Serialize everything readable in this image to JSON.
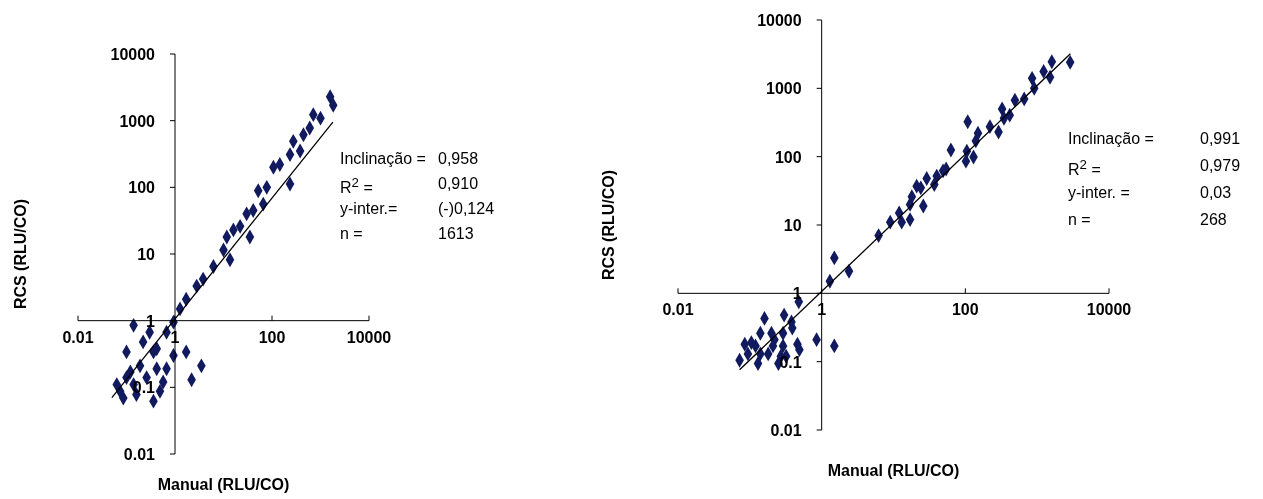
{
  "chart_data": [
    {
      "type": "scatter",
      "xlabel": "Manual (RLU/CO)",
      "ylabel": "RCS (RLU/CO)",
      "log": "xy",
      "xlim": [
        0.01,
        10000
      ],
      "ylim": [
        0.01,
        10000
      ],
      "xticks": [
        0.01,
        1,
        100,
        10000
      ],
      "yticks": [
        0.01,
        0.1,
        1,
        10,
        100,
        1000,
        10000
      ],
      "grid": false,
      "legend": false,
      "annotations": [
        "Inclinação =",
        "0,958",
        "R$^{2}$ =",
        "0,910",
        "y-inter.=",
        "(-)0,124",
        "n =",
        "1613"
      ],
      "series": [
        {
          "type": "scatter",
          "marker": "diamond",
          "color": "#111a5e",
          "x": [
            1580,
            1830,
            1000,
            710,
            600,
            445,
            380,
            275,
            235,
            235,
            145,
            107,
            78,
            52,
            66,
            41,
            30,
            35,
            22,
            16,
            11.7,
            13.6,
            10,
            6.2,
            3.8,
            2.8,
            1.7,
            1.27,
            0.93,
            0.67,
            0.14,
            0.3,
            0.42,
            0.93,
            1.7,
            3.5,
            2.2,
            0.67,
            0.57,
            0.36,
            0.14,
            0.074,
            0.086,
            0.1,
            0.19,
            0.26,
            0.12,
            0.063,
            0.36,
            0.22,
            0.49,
            0.16,
            0.1,
            0.42
          ],
          "values": [
            2280,
            1700,
            1090,
            1230,
            775,
            615,
            350,
            490,
            310,
            112,
            220,
            200,
            100,
            89,
            56,
            45,
            40,
            18,
            26,
            23,
            18,
            8.2,
            11.5,
            6.5,
            4.2,
            3.3,
            2.1,
            1.5,
            0.95,
            0.67,
            0.85,
            0.67,
            0.38,
            0.3,
            0.34,
            0.21,
            0.13,
            0.19,
            0.12,
            0.062,
            0.11,
            0.087,
            0.069,
            0.34,
            0.21,
            0.14,
            0.17,
            0.11,
            0.34,
            0.48,
            0.087,
            0.078,
            0.14,
            0.19
          ]
        },
        {
          "type": "line",
          "marker": "none",
          "color": "#000000",
          "x": [
            0.05,
            1800
          ],
          "values": [
            0.07,
            950
          ]
        }
      ]
    },
    {
      "type": "scatter",
      "xlabel": "Manual (RLU/CO)",
      "ylabel": "RCS (RLU/CO)",
      "log": "xy",
      "xlim": [
        0.01,
        10000
      ],
      "ylim": [
        0.01,
        10000
      ],
      "xticks": [
        0.01,
        1,
        100,
        10000
      ],
      "yticks": [
        0.01,
        0.1,
        1,
        10,
        100,
        1000,
        10000
      ],
      "grid": false,
      "legend": false,
      "annotations": [
        "Inclinação =",
        "0,991",
        "R$^{2}$ =",
        "0,979",
        "y-inter. =",
        "0,03",
        "n =",
        "268"
      ],
      "series": [
        {
          "type": "scatter",
          "marker": "diamond",
          "color": "#111a5e",
          "x": [
            2880,
            1600,
            1230,
            850,
            1510,
            910,
            660,
            490,
            415,
            325,
            345,
            290,
            220,
            150,
            140,
            108,
            130,
            102,
            105,
            63,
            54,
            49,
            40,
            37,
            29,
            24,
            26,
            21,
            18,
            17,
            17,
            13,
            12,
            9,
            6.2,
            2.4,
            1.5,
            1.3,
            1.5,
            0.85,
            0.48,
            0.46,
            0.38,
            0.3,
            0.39,
            0.49,
            0.29,
            0.16,
            0.14,
            0.22,
            0.12,
            0.094,
            0.072,
            0.105,
            0.18,
            0.13,
            0.25,
            0.29,
            0.085,
            0.2,
            0.32,
            0.14,
            0.21,
            0.27
          ],
          "values": [
            2400,
            2450,
            1770,
            1400,
            1450,
            1000,
            700,
            670,
            405,
            500,
            365,
            230,
            275,
            220,
            170,
            325,
            99,
            86,
            120,
            125,
            66,
            62,
            52,
            39,
            48,
            35,
            19,
            37,
            26,
            20,
            12,
            11,
            15,
            11,
            7,
            2.1,
            3.3,
            1.5,
            0.17,
            0.21,
            0.75,
            0.18,
            0.38,
            0.48,
            0.31,
            0.15,
            0.26,
            0.43,
            0.26,
            0.21,
            0.17,
            0.13,
            0.105,
            0.19,
            0.13,
            0.094,
            0.094,
            0.17,
            0.18,
            0.26,
            0.12,
            0.13,
            0.17,
            0.12
          ]
        },
        {
          "type": "line",
          "marker": "none",
          "color": "#000000",
          "x": [
            0.072,
            2900
          ],
          "values": [
            0.076,
            3200
          ]
        }
      ]
    }
  ]
}
